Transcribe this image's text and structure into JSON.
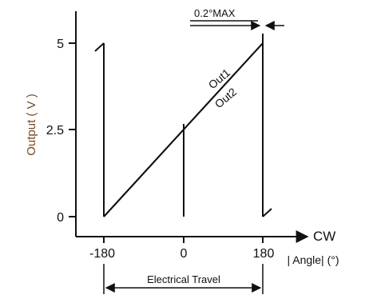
{
  "chart_data": {
    "type": "line",
    "ylabel": "Output ( V )",
    "x_axis_direction_label": "CW",
    "xlabel": "| Angle| (°)",
    "x_ticks": [
      -180,
      0,
      180
    ],
    "y_ticks": [
      "0",
      "2.5",
      "5"
    ],
    "xlim": [
      -180,
      180
    ],
    "ylim": [
      0,
      5
    ],
    "series": [
      {
        "name": "Out1",
        "x": [
          -180,
          180
        ],
        "y": [
          0,
          5
        ]
      },
      {
        "name": "Out2",
        "x": [
          -180,
          180
        ],
        "y": [
          0,
          5
        ]
      }
    ],
    "annotations": {
      "max_label": "0.2°MAX",
      "travel_label": "Electrical Travel"
    },
    "grid": false
  }
}
